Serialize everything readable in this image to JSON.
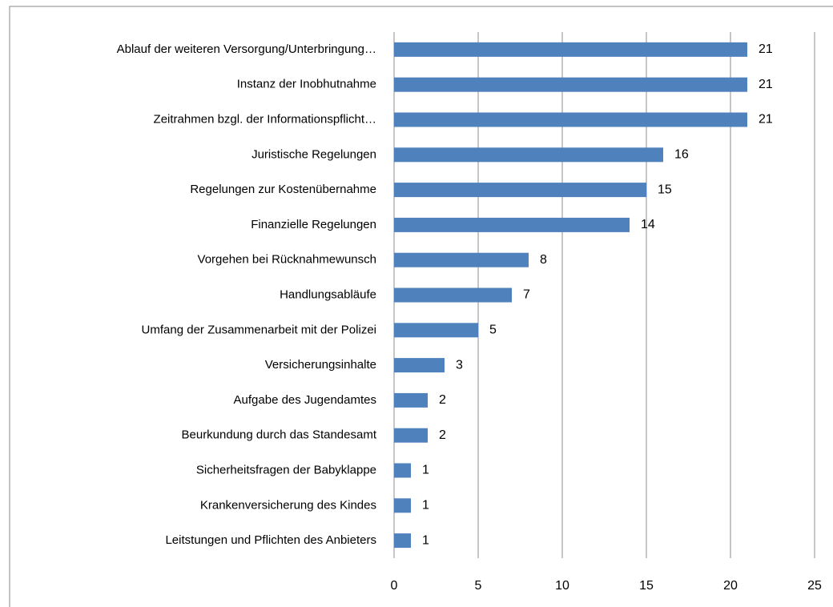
{
  "chart_data": {
    "type": "bar",
    "orientation": "horizontal",
    "categories": [
      "Ablauf der weiteren Versorgung/Unterbringung…",
      "Instanz der Inobhutnahme",
      "Zeitrahmen bzgl. der Informationspflicht…",
      "Juristische Regelungen",
      "Regelungen zur Kostenübernahme",
      "Finanzielle Regelungen",
      "Vorgehen bei Rücknahmewunsch",
      "Handlungsabläufe",
      "Umfang der Zusammenarbeit mit der Polizei",
      "Versicherungsinhalte",
      "Aufgabe des Jugendamtes",
      "Beurkundung durch das Standesamt",
      "Sicherheitsfragen der Babyklappe",
      "Krankenversicherung des Kindes",
      "Leitstungen und Pflichten des Anbieters"
    ],
    "values": [
      21,
      21,
      21,
      16,
      15,
      14,
      8,
      7,
      5,
      3,
      2,
      2,
      1,
      1,
      1
    ],
    "color": "#4f81bd",
    "xlim": [
      0,
      25
    ],
    "xticks": [
      0,
      5,
      10,
      15,
      20,
      25
    ],
    "grid": true
  }
}
